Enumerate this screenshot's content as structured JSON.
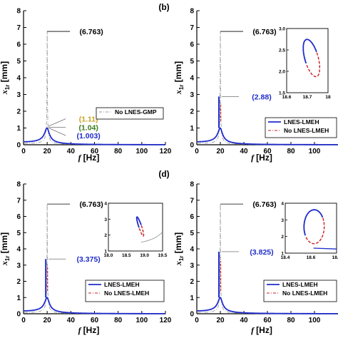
{
  "figure": {
    "panel_labels": [
      "(b)",
      "(d)"
    ]
  },
  "colors": {
    "axis": "#000000",
    "lnes": "#1f2ccc",
    "no_lnes": "#c81e1e",
    "gray_curve": "#9a9a9a",
    "callout_dark": "#000000",
    "callout_blue": "#1f2ccc",
    "callout_orange": "#c8a020",
    "callout_green": "#3a7a1a"
  },
  "chart_data": [
    {
      "id": "a",
      "type": "line",
      "xlabel_main": "f",
      "xlabel_unit": "[Hz]",
      "ylabel_main": "x",
      "ylabel_sub": "1r",
      "ylabel_unit": "[mm]",
      "xlim": [
        0,
        120
      ],
      "ylim": [
        0,
        8
      ],
      "x_ticks": [
        0,
        20,
        40,
        60,
        80,
        100,
        120
      ],
      "y_ticks": [
        0,
        1,
        2,
        3,
        4,
        5,
        6,
        7,
        8
      ],
      "callouts": [
        {
          "text": "(6.763)",
          "color": "dark",
          "x": 20,
          "y": 6.763,
          "label_y": 6.763
        },
        {
          "text": "(1.11)",
          "color": "orange",
          "x": 20,
          "y": 1.11,
          "label_y": 1.55
        },
        {
          "text": "(1.04)",
          "color": "green",
          "x": 20,
          "y": 1.04,
          "label_y": 1.05
        },
        {
          "text": "(1.003)",
          "color": "blue",
          "x": 20,
          "y": 1.003,
          "label_y": 0.55
        }
      ],
      "legend": [
        {
          "label": "No LNES-GMP",
          "style": "dashdot",
          "color": "gray_curve"
        }
      ],
      "series": [
        {
          "style": "dashdot",
          "color": "gray_curve",
          "peak_f": 20,
          "peak_x": 6.763
        },
        {
          "style": "solid",
          "color": "lnes",
          "peak_f": 20,
          "peak_x": 1.003
        }
      ]
    },
    {
      "id": "b",
      "type": "line",
      "xlabel_main": "f",
      "xlabel_unit": "[Hz]",
      "ylabel_main": "x",
      "ylabel_sub": "1r",
      "ylabel_unit": "[mm]",
      "xlim": [
        0,
        120
      ],
      "ylim": [
        0,
        8
      ],
      "x_ticks": [
        0,
        20,
        40,
        60,
        80,
        100
      ],
      "y_ticks": [
        0,
        1,
        2,
        3,
        4,
        5,
        6,
        7,
        8
      ],
      "callouts": [
        {
          "text": "(6.763)",
          "color": "dark",
          "x": 20,
          "y": 6.763,
          "label_y": 6.763
        },
        {
          "text": "(2.88)",
          "color": "blue",
          "x": 20,
          "y": 2.88,
          "label_y": 2.88
        }
      ],
      "legend": [
        {
          "label": "LNES-LMEH",
          "style": "solid",
          "color": "lnes"
        },
        {
          "label": "No LNES-LMEH",
          "style": "dashdot",
          "color": "no_lnes"
        }
      ],
      "inset": {
        "xlim": [
          18.6,
          18.75
        ],
        "ylim": [
          1.5,
          3.0
        ],
        "x_ticks": [
          "18.6",
          "18.7",
          "18"
        ],
        "y_ticks": [
          "1.5",
          "2.0",
          "2.5",
          "3.0"
        ],
        "loop": {
          "x_min": 18.64,
          "x_max": 18.74,
          "y_min": 1.72,
          "y_max": 2.9
        }
      },
      "series": [
        {
          "style": "dashdot",
          "color": "gray_curve",
          "peak_f": 20,
          "peak_x": 6.763
        },
        {
          "style": "solid",
          "color": "lnes",
          "peak_f": 20,
          "peak_x": 2.88
        }
      ]
    },
    {
      "id": "c",
      "type": "line",
      "xlabel_main": "f",
      "xlabel_unit": "[Hz]",
      "ylabel_main": "x",
      "ylabel_sub": "1r",
      "ylabel_unit": "[mm]",
      "xlim": [
        0,
        120
      ],
      "ylim": [
        0,
        8
      ],
      "x_ticks": [
        0,
        20,
        40,
        60,
        80,
        100,
        120
      ],
      "y_ticks": [
        0,
        1,
        2,
        3,
        4,
        5,
        6,
        7,
        8
      ],
      "callouts": [
        {
          "text": "(6.763)",
          "color": "dark",
          "x": 20,
          "y": 6.763,
          "label_y": 6.763
        },
        {
          "text": "(3.375)",
          "color": "blue",
          "x": 20,
          "y": 3.375,
          "label_y": 3.375
        }
      ],
      "legend": [
        {
          "label": "LNES-LMEH",
          "style": "solid",
          "color": "lnes"
        },
        {
          "label": "No LNES-LMEH",
          "style": "dashdot",
          "color": "no_lnes"
        }
      ],
      "inset": {
        "xlim": [
          18.0,
          19.5
        ],
        "ylim": [
          1,
          4
        ],
        "x_ticks": [
          "18.0",
          "18.5",
          "19.0",
          "19.5"
        ],
        "y_ticks": [
          "1",
          "2",
          "3",
          "4"
        ],
        "loop": {
          "x_min": 18.8,
          "x_max": 18.96,
          "y_min": 1.7,
          "y_max": 3.375
        }
      },
      "series": [
        {
          "style": "dashdot",
          "color": "gray_curve",
          "peak_f": 20,
          "peak_x": 6.763
        },
        {
          "style": "solid",
          "color": "lnes",
          "peak_f": 20,
          "peak_x": 3.375
        }
      ]
    },
    {
      "id": "d",
      "type": "line",
      "xlabel_main": "f",
      "xlabel_unit": "[Hz]",
      "ylabel_main": "x",
      "ylabel_sub": "1r",
      "ylabel_unit": "[mm]",
      "xlim": [
        0,
        120
      ],
      "ylim": [
        0,
        8
      ],
      "x_ticks": [
        0,
        20,
        40,
        60,
        80,
        100
      ],
      "y_ticks": [
        0,
        1,
        2,
        3,
        4,
        5,
        6,
        7,
        8
      ],
      "callouts": [
        {
          "text": "(6.763)",
          "color": "dark",
          "x": 20,
          "y": 6.763,
          "label_y": 6.763
        },
        {
          "text": "(3.825)",
          "color": "blue",
          "x": 20,
          "y": 3.825,
          "label_y": 3.825
        }
      ],
      "legend": [
        {
          "label": "LNES-LMEH",
          "style": "solid",
          "color": "lnes"
        },
        {
          "label": "No LNES-LMEH",
          "style": "dashdot",
          "color": "no_lnes"
        }
      ],
      "inset": {
        "xlim": [
          18.4,
          18.8
        ],
        "ylim": [
          1,
          4
        ],
        "x_ticks": [
          "18.4",
          "18.6",
          "18.8"
        ],
        "y_ticks": [
          "1",
          "2",
          "3",
          "4"
        ],
        "loop": {
          "x_min": 18.45,
          "x_max": 18.8,
          "y_min": 1.35,
          "y_max": 3.825
        }
      },
      "series": [
        {
          "style": "dashdot",
          "color": "gray_curve",
          "peak_f": 20,
          "peak_x": 6.763
        },
        {
          "style": "solid",
          "color": "lnes",
          "peak_f": 20,
          "peak_x": 3.825
        }
      ]
    }
  ]
}
